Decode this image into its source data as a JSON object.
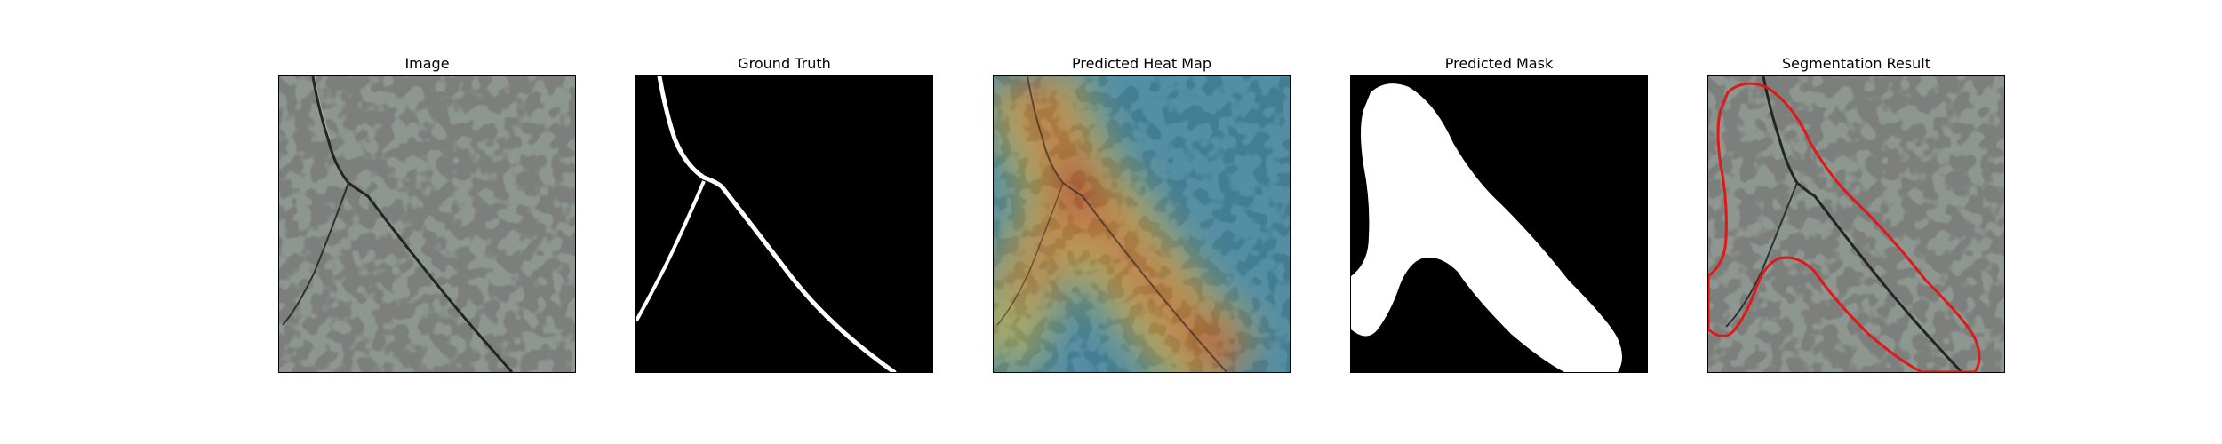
{
  "figure": {
    "panels": [
      {
        "title": "Image"
      },
      {
        "title": "Ground Truth"
      },
      {
        "title": "Predicted Heat Map"
      },
      {
        "title": "Predicted Mask"
      },
      {
        "title": "Segmentation Result"
      }
    ]
  },
  "colors": {
    "background": "#ffffff",
    "speckle_base": "#8e9690",
    "speckle_dark": "#3a3d3a",
    "mask_foreground": "#ffffff",
    "mask_background": "#000000",
    "contour": "#e01818",
    "heat_hot": "#c0392b",
    "heat_warm": "#d9a441",
    "heat_mid": "#5fb3a0",
    "heat_cold": "#3f78b5"
  }
}
